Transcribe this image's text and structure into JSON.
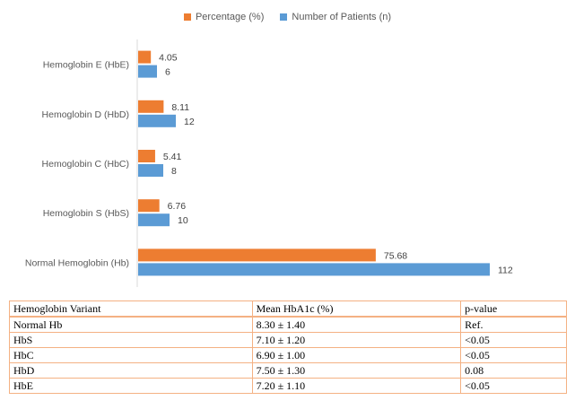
{
  "chart_data": {
    "type": "bar",
    "orientation": "horizontal",
    "categories": [
      "Hemoglobin E (HbE)",
      "Hemoglobin D (HbD)",
      "Hemoglobin C (HbC)",
      "Hemoglobin S (HbS)",
      "Normal Hemoglobin (Hb)"
    ],
    "series": [
      {
        "name": "Percentage (%)",
        "color": "#ed7d31",
        "values": [
          4.05,
          8.11,
          5.41,
          6.76,
          75.68
        ],
        "labels": [
          "4.05",
          "8.11",
          "5.41",
          "6.76",
          "75.68"
        ]
      },
      {
        "name": "Number of Patients (n)",
        "color": "#5b9bd5",
        "values": [
          6,
          12,
          8,
          10,
          112
        ],
        "labels": [
          "6",
          "12",
          "8",
          "10",
          "112"
        ]
      }
    ],
    "xlim": [
      0,
      120
    ],
    "grid": false,
    "legend_position": "top"
  },
  "table": {
    "headers": [
      "Hemoglobin Variant",
      "Mean HbA1c (%)",
      "p-value"
    ],
    "rows": [
      [
        "Normal Hb",
        "8.30 ± 1.40",
        "Ref."
      ],
      [
        "HbS",
        "7.10 ± 1.20",
        "<0.05"
      ],
      [
        "HbC",
        "6.90 ± 1.00",
        "<0.05"
      ],
      [
        "HbD",
        "7.50 ± 1.30",
        "0.08"
      ],
      [
        "HbE",
        "7.20 ± 1.10",
        "<0.05"
      ]
    ]
  }
}
